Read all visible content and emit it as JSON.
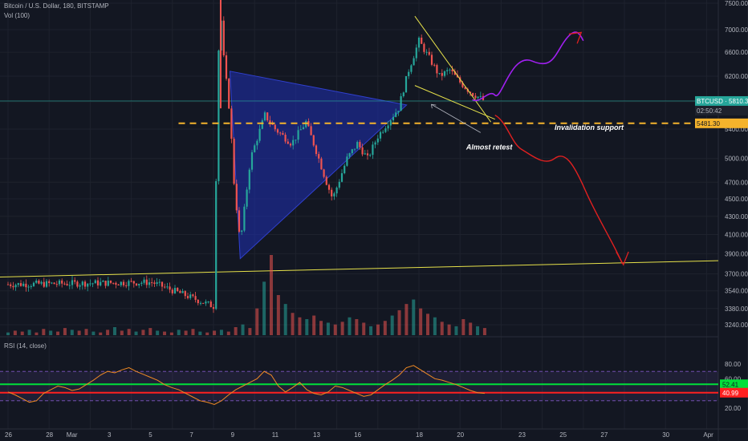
{
  "header": {
    "symbol_line": "Bitcoin / U.S. Dollar, 180, BITSTAMP",
    "vol_line": "Vol (100)",
    "rsi_line": "RSI (14, close)"
  },
  "price_tags": {
    "symbol_tag": "BTCUSD · 5810.34",
    "countdown": "02:50:42",
    "level_tag": "5481.30"
  },
  "rsi_tags": {
    "upper": "52.41",
    "lower": "40.99"
  },
  "annotations": {
    "invalidation": "Invalidation support",
    "retest": "Almost retest"
  },
  "colors": {
    "background": "#131722",
    "triangle": "#1f2fb5",
    "trendline": "#e6e14a",
    "support": "#f5b32c",
    "up_path": "#a020f0",
    "down_path": "#e02020",
    "rsi_line": "#f08a24",
    "rsi_upper": "#00e03a",
    "rsi_lower": "#ff2020"
  },
  "chart_data": [
    {
      "type": "candlestick",
      "series_name": "Bitcoin / U.S. Dollar",
      "price_axis_ticks": [
        7500,
        7000,
        6600,
        6200,
        5800,
        5400,
        5000,
        4700,
        4500,
        4300,
        4100,
        3900,
        3700,
        3540,
        3380,
        3240
      ],
      "date_axis_ticks": [
        "26",
        "28",
        "Mar",
        "3",
        "5",
        "7",
        "9",
        "11",
        "13",
        "16",
        "18",
        "20",
        "23",
        "25",
        "27",
        "30",
        "Apr"
      ],
      "scale": "log",
      "last_price": 5810.34,
      "support_level": 5481.3,
      "path_points": [
        [
          0,
          0,
          3600
        ],
        [
          0,
          7,
          3620
        ],
        [
          0,
          10,
          3400
        ],
        [
          0,
          10.3,
          7600
        ],
        [
          0,
          10.5,
          6500
        ],
        [
          0,
          10.8,
          5600
        ],
        [
          0,
          11,
          4700
        ],
        [
          0,
          11.3,
          4000
        ],
        [
          0,
          11.8,
          5000
        ],
        [
          0,
          12.5,
          5600
        ],
        [
          0,
          13,
          5400
        ],
        [
          0,
          13.8,
          5200
        ],
        [
          0,
          14.5,
          5500
        ],
        [
          0,
          15,
          5100
        ],
        [
          0,
          15.5,
          4700
        ],
        [
          0,
          15.8,
          4500
        ],
        [
          0,
          16.5,
          5000
        ],
        [
          0,
          17,
          5200
        ],
        [
          0,
          17.5,
          5000
        ],
        [
          0,
          18,
          5300
        ],
        [
          0,
          18.5,
          5500
        ],
        [
          0,
          19,
          5700
        ],
        [
          0,
          19.5,
          6300
        ],
        [
          0,
          20,
          6800
        ],
        [
          0,
          20.5,
          6500
        ],
        [
          0,
          21,
          6200
        ],
        [
          0,
          21.5,
          6300
        ],
        [
          0,
          22,
          6100
        ],
        [
          0,
          22.5,
          5950
        ],
        [
          0,
          23.2,
          5810
        ]
      ],
      "volume_series": [
        3,
        5,
        4,
        6,
        3,
        7,
        5,
        4,
        8,
        6,
        5,
        7,
        4,
        3,
        6,
        9,
        5,
        7,
        4,
        6,
        8,
        5,
        4,
        3,
        6,
        5,
        7,
        4,
        3,
        5,
        6,
        4,
        9,
        12,
        8,
        30,
        60,
        90,
        45,
        35,
        25,
        20,
        18,
        22,
        16,
        14,
        12,
        15,
        20,
        18,
        14,
        10,
        12,
        16,
        22,
        28,
        35,
        40,
        30,
        24,
        20,
        15,
        12,
        10,
        18,
        14,
        10,
        8
      ],
      "rsi_series": [
        42,
        38,
        33,
        28,
        30,
        40,
        45,
        50,
        48,
        44,
        46,
        52,
        58,
        65,
        70,
        68,
        72,
        75,
        70,
        66,
        62,
        58,
        52,
        48,
        45,
        40,
        35,
        30,
        28,
        25,
        30,
        38,
        45,
        50,
        55,
        60,
        70,
        65,
        50,
        42,
        48,
        55,
        45,
        40,
        38,
        42,
        50,
        48,
        44,
        40,
        36,
        38,
        45,
        52,
        58,
        65,
        75,
        78,
        72,
        66,
        60,
        58,
        55,
        52,
        48,
        44,
        41,
        40
      ],
      "rsi_axis_ticks": [
        80,
        60,
        40,
        20
      ],
      "rsi_upper_level": 52.41,
      "rsi_lower_level": 40.99
    }
  ]
}
